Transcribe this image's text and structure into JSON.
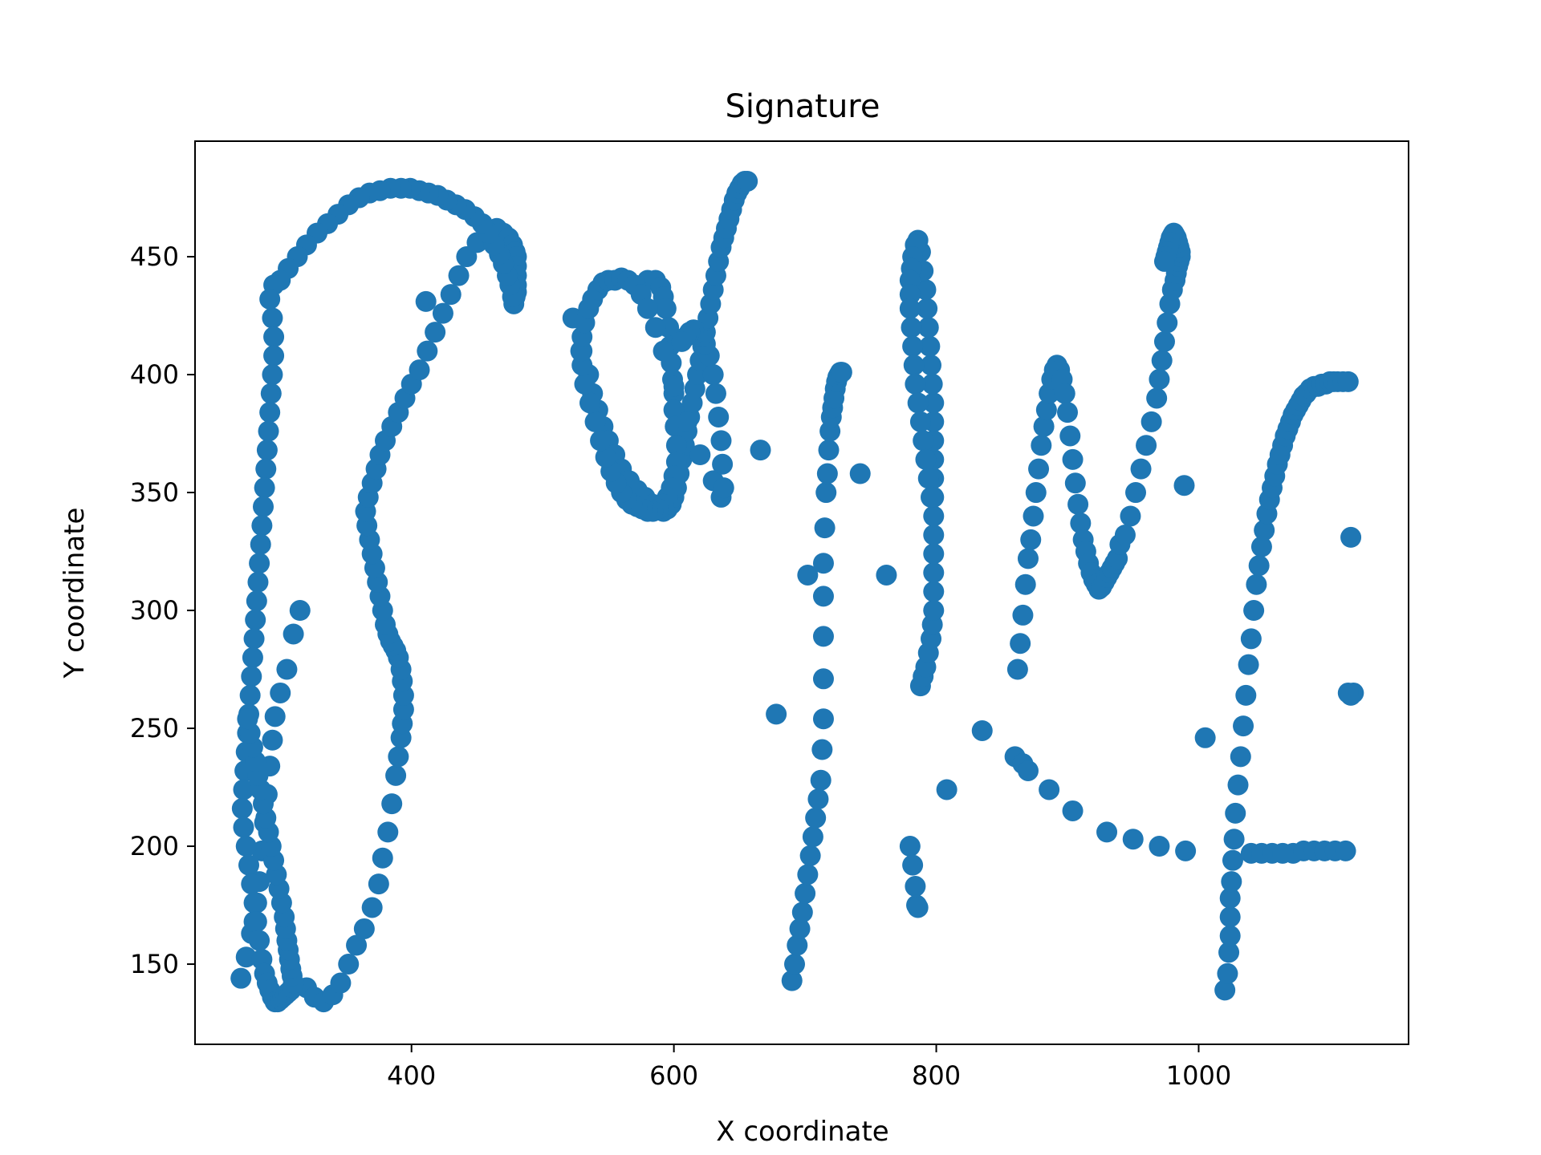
{
  "chart_data": {
    "type": "scatter",
    "title": "Signature",
    "xlabel": "X coordinate",
    "ylabel": "Y coordinate",
    "xlim": [
      235,
      1160
    ],
    "ylim": [
      116,
      499
    ],
    "xticks": [
      400,
      600,
      800,
      1000
    ],
    "yticks": [
      150,
      200,
      250,
      300,
      350,
      400,
      450
    ],
    "grid": false,
    "color": "#1f77b4",
    "series": [
      {
        "x": [
          270,
          274,
          278,
          280,
          282,
          284,
          286,
          288,
          290,
          292,
          294,
          296,
          300,
          305,
          310,
          315,
          320,
          326,
          333,
          340,
          346,
          352,
          358,
          364,
          370,
          375,
          378,
          382,
          385,
          388,
          390,
          392,
          393,
          394,
          394,
          393,
          392,
          390,
          388,
          386,
          384,
          382,
          380,
          378,
          376,
          374,
          372,
          370,
          368,
          366,
          365,
          367,
          370,
          373,
          376,
          380,
          385,
          390,
          395,
          400,
          406,
          412,
          418,
          424,
          430,
          436,
          442,
          450,
          458,
          465,
          470,
          474,
          477,
          479,
          480,
          480,
          480,
          480,
          480,
          479,
          478,
          477,
          475,
          473,
          470,
          467,
          463,
          459,
          454,
          448,
          441,
          434,
          427,
          420,
          413,
          406,
          399,
          392,
          384,
          376,
          368,
          360,
          352,
          344,
          336,
          328,
          320,
          313,
          306,
          300,
          295,
          292,
          294,
          295,
          295,
          294,
          293,
          292,
          291,
          290,
          289,
          288,
          287,
          286,
          285,
          284,
          283,
          282,
          281,
          280,
          279,
          278,
          277,
          276,
          275,
          274,
          273,
          272,
          271,
          272,
          274,
          276,
          278,
          280,
          282,
          284,
          286,
          288,
          290,
          292,
          294,
          296,
          298,
          300,
          302,
          304,
          306,
          308,
          309,
          310,
          309,
          308,
          307,
          306,
          305,
          304,
          303,
          301,
          299,
          297,
          295,
          293,
          291,
          289,
          287,
          285,
          283,
          281,
          279,
          277,
          275
        ],
        "y": [
          144,
          153,
          163,
          168,
          176,
          185,
          198,
          210,
          222,
          234,
          245,
          255,
          265,
          275,
          290,
          300,
          140,
          136,
          134,
          137,
          142,
          150,
          158,
          165,
          174,
          184,
          195,
          206,
          218,
          230,
          238,
          246,
          252,
          258,
          264,
          270,
          275,
          280,
          283,
          285,
          287,
          290,
          294,
          300,
          306,
          312,
          318,
          324,
          330,
          336,
          342,
          348,
          354,
          360,
          366,
          372,
          378,
          384,
          390,
          396,
          402,
          410,
          418,
          426,
          434,
          442,
          450,
          456,
          460,
          462,
          460,
          458,
          455,
          452,
          450,
          446,
          442,
          438,
          435,
          433,
          430,
          433,
          438,
          442,
          447,
          451,
          455,
          460,
          464,
          467,
          470,
          472,
          474,
          476,
          477,
          478,
          479,
          479,
          479,
          478,
          477,
          475,
          472,
          468,
          464,
          460,
          455,
          450,
          445,
          440,
          438,
          432,
          424,
          416,
          408,
          400,
          392,
          384,
          376,
          368,
          360,
          352,
          344,
          336,
          328,
          320,
          312,
          304,
          296,
          288,
          280,
          272,
          264,
          256,
          248,
          240,
          232,
          224,
          216,
          208,
          200,
          192,
          184,
          176,
          168,
          160,
          152,
          146,
          142,
          139,
          136,
          134,
          134,
          135,
          136,
          137,
          138,
          139,
          140,
          142,
          145,
          148,
          152,
          156,
          160,
          165,
          170,
          176,
          182,
          188,
          194,
          200,
          206,
          212,
          218,
          224,
          230,
          236,
          242,
          248,
          254
        ]
      },
      {
        "x": [
          411,
          523,
          530,
          535,
          538,
          542,
          546,
          550,
          555,
          560,
          566,
          572,
          578,
          584,
          588,
          592,
          595,
          598,
          600,
          602,
          604,
          606,
          608,
          610,
          612,
          614,
          616,
          618,
          620,
          622,
          624,
          626,
          628,
          630,
          632,
          634,
          636,
          638,
          640,
          642,
          644,
          646,
          648,
          650,
          652,
          654,
          656,
          580,
          586,
          590,
          592,
          594,
          596,
          597,
          598,
          599,
          600,
          600,
          601,
          602,
          602,
          600,
          598,
          595,
          592,
          588,
          584,
          580,
          576,
          572,
          568,
          564,
          560,
          556,
          552,
          548,
          544,
          540,
          536,
          532,
          530,
          529,
          530,
          532,
          535,
          538,
          542,
          546,
          550,
          555,
          560,
          565,
          570,
          575,
          580,
          586,
          592,
          600,
          610,
          620,
          630,
          636,
          638,
          637,
          636,
          634,
          632,
          630,
          627,
          624,
          621,
          618,
          615,
          612,
          609,
          606,
          666,
          678,
          702,
          742,
          762
        ],
        "y": [
          431,
          424,
          410,
          400,
          392,
          385,
          378,
          372,
          366,
          360,
          355,
          351,
          348,
          345,
          343,
          342,
          343,
          345,
          348,
          352,
          358,
          364,
          370,
          376,
          382,
          388,
          394,
          400,
          406,
          412,
          418,
          424,
          430,
          436,
          442,
          448,
          454,
          458,
          462,
          466,
          470,
          474,
          477,
          479,
          481,
          482,
          482,
          440,
          440,
          437,
          433,
          428,
          420,
          412,
          405,
          398,
          392,
          385,
          378,
          370,
          363,
          357,
          352,
          348,
          345,
          343,
          342,
          342,
          343,
          344,
          345,
          347,
          350,
          354,
          359,
          365,
          372,
          380,
          388,
          396,
          404,
          410,
          416,
          422,
          428,
          432,
          436,
          439,
          440,
          440,
          441,
          440,
          438,
          434,
          428,
          420,
          410,
          395,
          380,
          366,
          355,
          348,
          352,
          362,
          372,
          382,
          392,
          400,
          408,
          413,
          416,
          418,
          419,
          418,
          416,
          414,
          368,
          256,
          315,
          358,
          315
        ]
      },
      {
        "x": [
          690,
          692,
          694,
          696,
          698,
          700,
          702,
          704,
          706,
          708,
          710,
          712,
          713,
          714,
          714,
          714,
          714,
          714,
          715,
          716,
          717,
          718,
          719,
          720,
          721,
          722,
          723,
          724,
          725,
          726,
          727,
          728
        ],
        "y": [
          143,
          150,
          158,
          165,
          172,
          180,
          188,
          196,
          204,
          212,
          220,
          228,
          241,
          254,
          271,
          289,
          306,
          320,
          335,
          350,
          358,
          368,
          376,
          382,
          386,
          390,
          394,
          397,
          399,
          400,
          401,
          401
        ]
      },
      {
        "x": [
          780,
          782,
          784,
          785,
          786,
          788,
          790,
          792,
          794,
          796,
          797,
          798,
          798,
          798,
          798,
          798,
          798,
          798,
          798,
          798,
          798,
          798,
          798,
          797,
          796,
          795,
          794,
          793,
          792,
          790,
          788,
          786,
          784,
          782,
          781,
          780,
          780,
          780,
          781,
          782,
          783,
          784,
          786,
          788,
          790,
          792,
          794,
          796,
          808,
          835
        ],
        "y": [
          200,
          192,
          183,
          175,
          174,
          268,
          272,
          276,
          282,
          288,
          294,
          300,
          308,
          316,
          324,
          332,
          340,
          348,
          356,
          364,
          372,
          380,
          388,
          396,
          404,
          412,
          420,
          428,
          436,
          444,
          452,
          457,
          455,
          450,
          445,
          440,
          434,
          428,
          420,
          412,
          404,
          396,
          388,
          380,
          372,
          364,
          356,
          348,
          224,
          249
        ]
      },
      {
        "x": [
          862,
          864,
          866,
          868,
          870,
          872,
          874,
          876,
          878,
          880,
          882,
          884,
          886,
          888,
          890,
          892,
          894,
          896,
          898,
          900,
          902,
          904,
          906,
          908,
          910,
          912,
          914,
          916,
          918,
          920,
          922,
          924,
          926,
          928,
          930,
          932,
          934,
          936,
          938,
          940,
          944,
          948,
          952,
          956,
          960,
          964,
          968,
          970,
          972,
          974,
          976,
          978,
          980,
          982,
          983,
          984,
          985,
          986,
          986,
          985,
          984,
          983,
          982,
          981,
          980,
          979,
          978,
          977,
          976,
          975,
          974,
          989
        ],
        "y": [
          275,
          286,
          298,
          311,
          322,
          330,
          340,
          350,
          360,
          370,
          378,
          385,
          392,
          398,
          402,
          404,
          402,
          398,
          392,
          384,
          374,
          364,
          354,
          345,
          337,
          330,
          325,
          320,
          316,
          313,
          311,
          309,
          310,
          312,
          314,
          316,
          318,
          320,
          322,
          328,
          332,
          340,
          350,
          360,
          370,
          380,
          390,
          398,
          406,
          414,
          422,
          430,
          436,
          440,
          443,
          446,
          448,
          450,
          452,
          454,
          456,
          458,
          459,
          460,
          459,
          458,
          456,
          454,
          452,
          450,
          448,
          353
        ]
      },
      {
        "x": [
          860,
          866,
          870,
          886,
          904,
          930,
          950,
          970,
          990,
          1005,
          1020,
          1022,
          1023,
          1024,
          1024,
          1024,
          1025,
          1026,
          1027,
          1028,
          1030,
          1032,
          1034,
          1036,
          1038,
          1040,
          1042,
          1044,
          1046,
          1048,
          1050,
          1052,
          1054,
          1056,
          1058,
          1060,
          1062,
          1064,
          1066,
          1068,
          1070,
          1072,
          1074,
          1076,
          1078,
          1080,
          1082,
          1085,
          1088,
          1091,
          1094,
          1097,
          1100,
          1103,
          1106,
          1110,
          1114,
          1116,
          1118,
          1116,
          1114,
          1040,
          1048,
          1056,
          1064,
          1072,
          1080,
          1088,
          1096,
          1104,
          1112
        ],
        "y": [
          238,
          235,
          232,
          224,
          215,
          206,
          203,
          200,
          198,
          246,
          139,
          146,
          155,
          162,
          170,
          178,
          185,
          194,
          203,
          214,
          226,
          238,
          251,
          264,
          277,
          288,
          300,
          311,
          319,
          327,
          334,
          341,
          347,
          352,
          357,
          362,
          366,
          370,
          374,
          377,
          380,
          383,
          385,
          387,
          389,
          391,
          392,
          394,
          395,
          395,
          396,
          396,
          397,
          397,
          397,
          397,
          397,
          331,
          265,
          264,
          265,
          197,
          197,
          197,
          197,
          197,
          198,
          198,
          198,
          198,
          198
        ]
      }
    ]
  }
}
